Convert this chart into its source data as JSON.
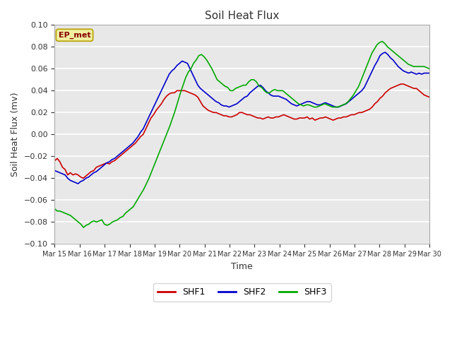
{
  "title": "Soil Heat Flux",
  "xlabel": "Time",
  "ylabel": "Soil Heat Flux (mv)",
  "ylim": [
    -0.1,
    0.1
  ],
  "yticks": [
    -0.1,
    -0.08,
    -0.06,
    -0.04,
    -0.02,
    0.0,
    0.02,
    0.04,
    0.06,
    0.08,
    0.1
  ],
  "xtick_labels": [
    "Mar 15",
    "Mar 16",
    "Mar 17",
    "Mar 18",
    "Mar 19",
    "Mar 20",
    "Mar 21",
    "Mar 22",
    "Mar 23",
    "Mar 24",
    "Mar 25",
    "Mar 26",
    "Mar 27",
    "Mar 28",
    "Mar 29",
    "Mar 30"
  ],
  "plot_bg": "#e8e8e8",
  "fig_bg": "#ffffff",
  "grid_color": "#ffffff",
  "annotation_text": "EP_met",
  "annotation_bg": "#f0f0a0",
  "annotation_border": "#b8a000",
  "line_colors": {
    "SHF1": "#cc0000",
    "SHF2": "#0000cc",
    "SHF3": "#00aa00"
  },
  "line_width": 1.2,
  "SHF1": [
    -0.024,
    -0.022,
    -0.025,
    -0.03,
    -0.032,
    -0.037,
    -0.035,
    -0.037,
    -0.036,
    -0.037,
    -0.039,
    -0.04,
    -0.038,
    -0.036,
    -0.034,
    -0.033,
    -0.03,
    -0.029,
    -0.028,
    -0.027,
    -0.026,
    -0.027,
    -0.025,
    -0.024,
    -0.022,
    -0.02,
    -0.018,
    -0.016,
    -0.014,
    -0.012,
    -0.01,
    -0.008,
    -0.005,
    -0.002,
    0.0,
    0.005,
    0.01,
    0.015,
    0.018,
    0.022,
    0.025,
    0.028,
    0.032,
    0.035,
    0.037,
    0.038,
    0.038,
    0.04,
    0.04,
    0.04,
    0.04,
    0.039,
    0.038,
    0.037,
    0.036,
    0.034,
    0.03,
    0.026,
    0.024,
    0.022,
    0.021,
    0.02,
    0.02,
    0.019,
    0.018,
    0.017,
    0.017,
    0.016,
    0.016,
    0.017,
    0.018,
    0.02,
    0.02,
    0.019,
    0.018,
    0.018,
    0.017,
    0.016,
    0.015,
    0.015,
    0.014,
    0.015,
    0.016,
    0.015,
    0.015,
    0.016,
    0.016,
    0.017,
    0.018,
    0.017,
    0.016,
    0.015,
    0.014,
    0.014,
    0.015,
    0.015,
    0.015,
    0.016,
    0.014,
    0.015,
    0.013,
    0.014,
    0.015,
    0.015,
    0.016,
    0.015,
    0.014,
    0.013,
    0.014,
    0.015,
    0.015,
    0.016,
    0.016,
    0.017,
    0.018,
    0.018,
    0.019,
    0.02,
    0.02,
    0.021,
    0.022,
    0.023,
    0.025,
    0.028,
    0.03,
    0.033,
    0.035,
    0.038,
    0.04,
    0.042,
    0.043,
    0.044,
    0.045,
    0.046,
    0.046,
    0.045,
    0.044,
    0.043,
    0.042,
    0.042,
    0.04,
    0.038,
    0.036,
    0.035,
    0.034
  ],
  "SHF2": [
    -0.033,
    -0.034,
    -0.035,
    -0.036,
    -0.037,
    -0.04,
    -0.042,
    -0.043,
    -0.044,
    -0.045,
    -0.043,
    -0.042,
    -0.04,
    -0.039,
    -0.037,
    -0.035,
    -0.034,
    -0.032,
    -0.03,
    -0.028,
    -0.026,
    -0.025,
    -0.023,
    -0.022,
    -0.02,
    -0.018,
    -0.016,
    -0.014,
    -0.012,
    -0.01,
    -0.008,
    -0.005,
    -0.002,
    0.002,
    0.005,
    0.01,
    0.015,
    0.02,
    0.025,
    0.03,
    0.035,
    0.04,
    0.045,
    0.05,
    0.055,
    0.058,
    0.06,
    0.063,
    0.065,
    0.067,
    0.066,
    0.065,
    0.06,
    0.055,
    0.05,
    0.045,
    0.042,
    0.04,
    0.038,
    0.036,
    0.034,
    0.032,
    0.03,
    0.029,
    0.027,
    0.026,
    0.026,
    0.025,
    0.026,
    0.027,
    0.028,
    0.03,
    0.032,
    0.034,
    0.035,
    0.038,
    0.04,
    0.042,
    0.044,
    0.045,
    0.043,
    0.04,
    0.038,
    0.036,
    0.035,
    0.035,
    0.035,
    0.034,
    0.033,
    0.032,
    0.03,
    0.028,
    0.027,
    0.026,
    0.027,
    0.028,
    0.029,
    0.03,
    0.03,
    0.029,
    0.028,
    0.027,
    0.027,
    0.028,
    0.029,
    0.028,
    0.027,
    0.026,
    0.025,
    0.025,
    0.026,
    0.027,
    0.028,
    0.03,
    0.032,
    0.034,
    0.036,
    0.038,
    0.04,
    0.043,
    0.048,
    0.053,
    0.058,
    0.063,
    0.067,
    0.072,
    0.074,
    0.075,
    0.073,
    0.07,
    0.068,
    0.065,
    0.062,
    0.06,
    0.058,
    0.057,
    0.056,
    0.057,
    0.056,
    0.055,
    0.056,
    0.055,
    0.056,
    0.056,
    0.056
  ],
  "SHF3": [
    -0.068,
    -0.07,
    -0.07,
    -0.071,
    -0.072,
    -0.073,
    -0.074,
    -0.076,
    -0.078,
    -0.08,
    -0.082,
    -0.085,
    -0.083,
    -0.082,
    -0.08,
    -0.079,
    -0.08,
    -0.079,
    -0.078,
    -0.082,
    -0.083,
    -0.082,
    -0.08,
    -0.079,
    -0.078,
    -0.076,
    -0.075,
    -0.072,
    -0.07,
    -0.068,
    -0.066,
    -0.062,
    -0.058,
    -0.054,
    -0.05,
    -0.045,
    -0.04,
    -0.034,
    -0.028,
    -0.022,
    -0.016,
    -0.01,
    -0.004,
    0.002,
    0.008,
    0.015,
    0.022,
    0.03,
    0.038,
    0.045,
    0.052,
    0.057,
    0.06,
    0.065,
    0.068,
    0.072,
    0.073,
    0.071,
    0.068,
    0.064,
    0.06,
    0.055,
    0.05,
    0.048,
    0.046,
    0.044,
    0.043,
    0.04,
    0.04,
    0.042,
    0.043,
    0.044,
    0.045,
    0.045,
    0.048,
    0.05,
    0.05,
    0.048,
    0.044,
    0.043,
    0.04,
    0.038,
    0.038,
    0.04,
    0.041,
    0.04,
    0.04,
    0.04,
    0.038,
    0.036,
    0.034,
    0.032,
    0.03,
    0.028,
    0.027,
    0.026,
    0.027,
    0.027,
    0.026,
    0.025,
    0.025,
    0.026,
    0.027,
    0.028,
    0.027,
    0.026,
    0.025,
    0.025,
    0.025,
    0.026,
    0.027,
    0.028,
    0.03,
    0.033,
    0.036,
    0.04,
    0.044,
    0.05,
    0.056,
    0.062,
    0.068,
    0.074,
    0.078,
    0.082,
    0.084,
    0.085,
    0.083,
    0.08,
    0.078,
    0.076,
    0.074,
    0.072,
    0.07,
    0.068,
    0.066,
    0.064,
    0.063,
    0.062,
    0.062,
    0.062,
    0.062,
    0.062,
    0.061,
    0.06
  ]
}
